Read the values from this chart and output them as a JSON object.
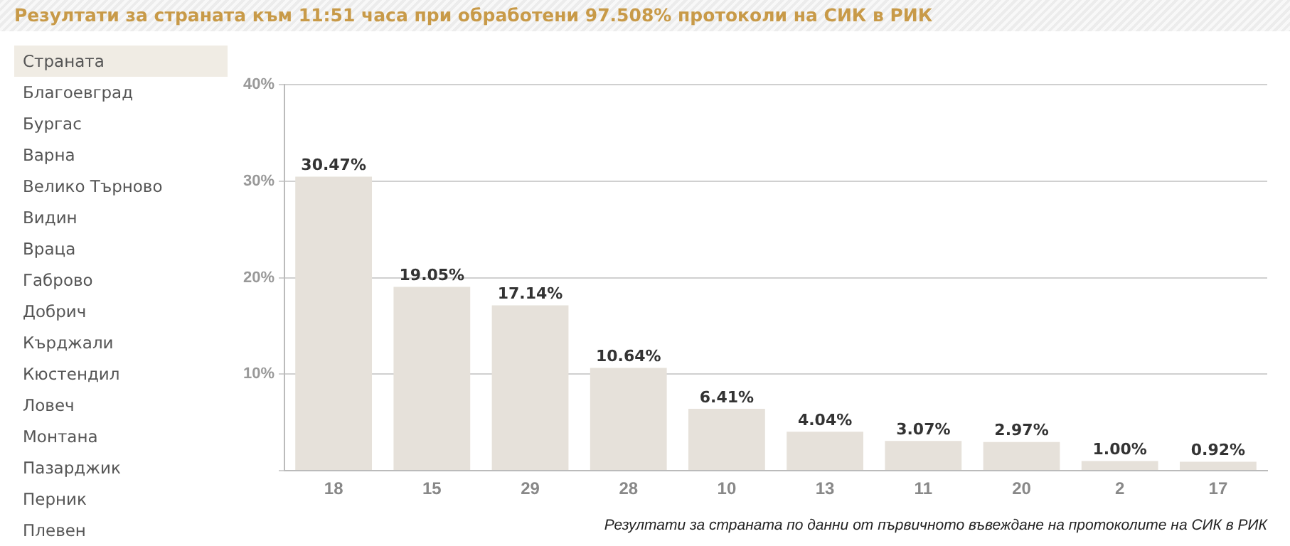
{
  "chart_data": {
    "type": "bar",
    "title": "Резултати за страната към 11:51 часа при обработени 97.508% протоколи на СИК в РИК",
    "xlabel": "Резултати за страната по данни от първичното въвеждане на протоколите на СИК в РИК",
    "categories": [
      "18",
      "15",
      "29",
      "28",
      "10",
      "13",
      "11",
      "20",
      "2",
      "17"
    ],
    "values": [
      30.47,
      19.05,
      17.14,
      10.64,
      6.41,
      4.04,
      3.07,
      2.97,
      1.0,
      0.92
    ],
    "value_labels": [
      "30.47%",
      "19.05%",
      "17.14%",
      "10.64%",
      "6.41%",
      "4.04%",
      "3.07%",
      "2.97%",
      "1.00%",
      "0.92%"
    ],
    "color": "#e6e1da",
    "ylim": [
      0,
      40
    ],
    "yticks": [
      {
        "value": 0,
        "label": null
      },
      {
        "value": 10,
        "label": "10%"
      },
      {
        "value": 20,
        "label": "20%"
      },
      {
        "value": 30,
        "label": "30%"
      },
      {
        "value": 40,
        "label": "40%"
      }
    ],
    "grid": "y",
    "annotations": [
      "Страната",
      "Благоевград",
      "Бургас",
      "Варна",
      "Велико Търново",
      "Видин",
      "Враца",
      "Габрово",
      "Добрич",
      "Кърджали",
      "Кюстендил",
      "Ловеч",
      "Монтана",
      "Пазарджик",
      "Перник",
      "Плевен"
    ]
  }
}
